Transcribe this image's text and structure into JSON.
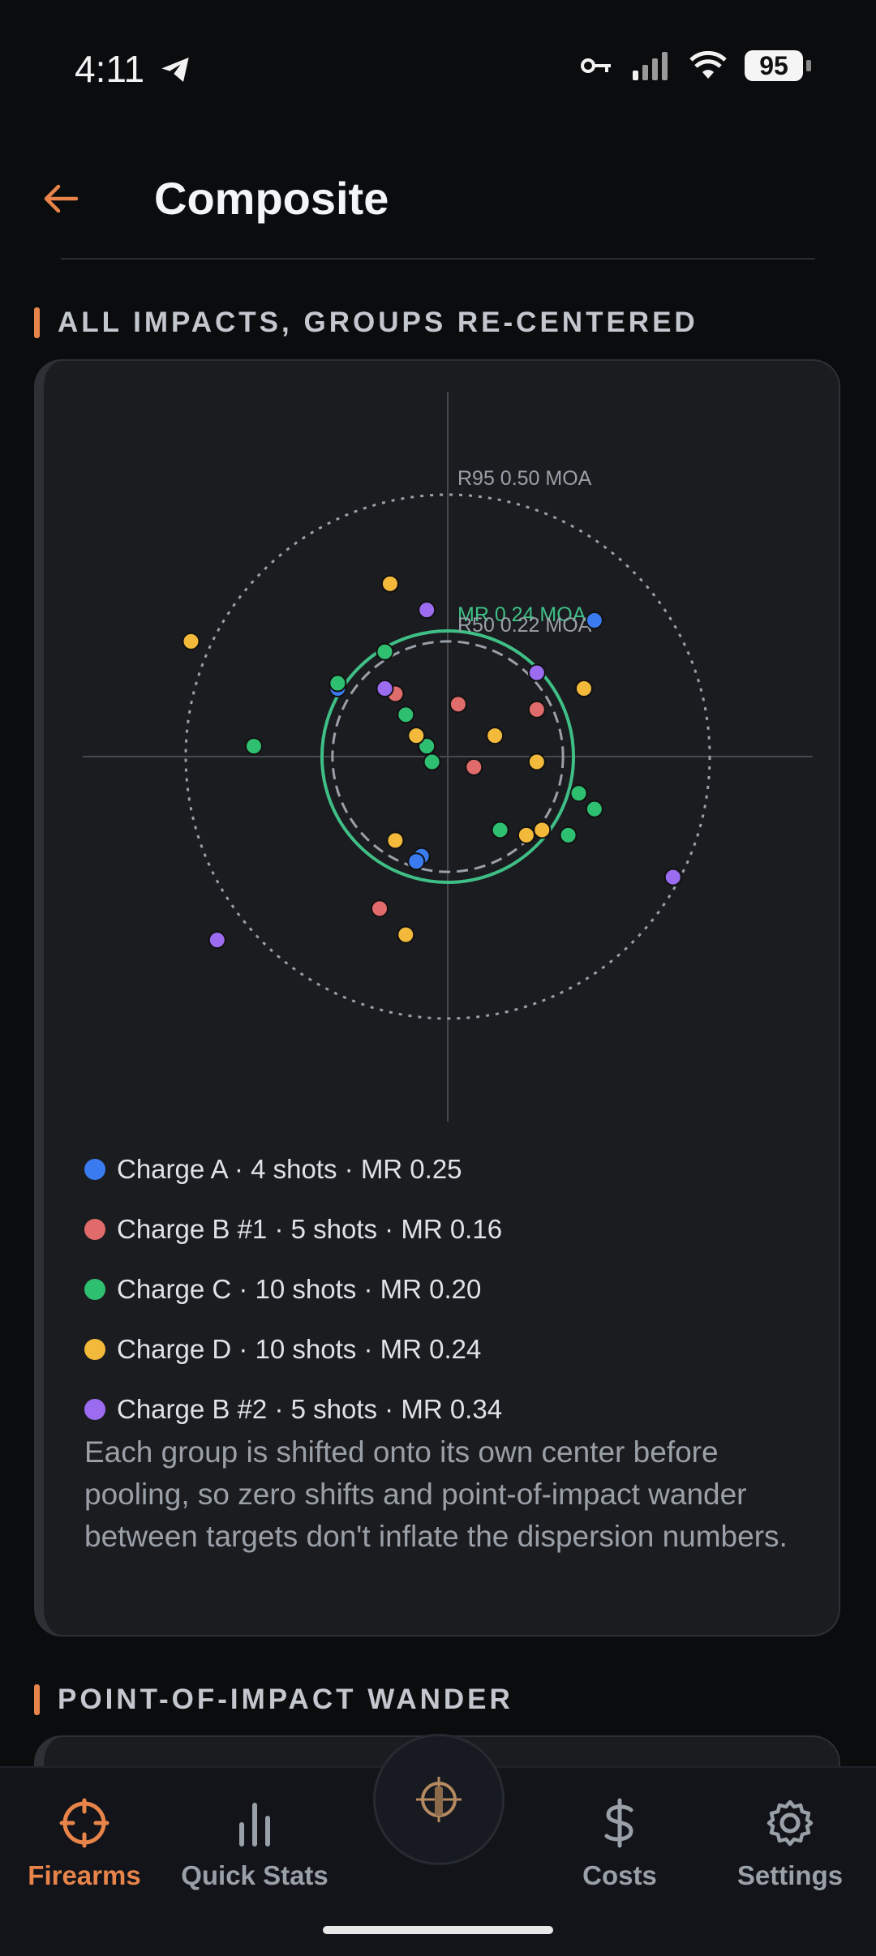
{
  "status": {
    "time": "4:11",
    "battery": "95"
  },
  "header": {
    "title": "Composite"
  },
  "sections": {
    "composite": "ALL IMPACTS, GROUPS RE-CENTERED",
    "wander": "POINT-OF-IMPACT WANDER"
  },
  "chart_data": {
    "type": "scatter",
    "x_range": [
      -1,
      1
    ],
    "y_range": [
      -1,
      1
    ],
    "circles": [
      {
        "label": "R95 0.50 MOA",
        "radius": 0.5,
        "style": "dotted",
        "color": "#9aa0a8"
      },
      {
        "label": "MR 0.24 MOA",
        "radius": 0.24,
        "style": "solid",
        "color": "#3fbf86"
      },
      {
        "label": "R50 0.22 MOA",
        "radius": 0.22,
        "style": "dashed",
        "color": "#9aa0a8"
      }
    ],
    "series": [
      {
        "name": "Charge A · 4 shots · MR 0.25",
        "color": "#3a7bf0",
        "points": [
          [
            0.28,
            0.26
          ],
          [
            -0.21,
            0.13
          ],
          [
            -0.05,
            -0.19
          ],
          [
            -0.06,
            -0.2
          ]
        ]
      },
      {
        "name": "Charge B #1 · 5 shots · MR 0.16",
        "color": "#e06b6b",
        "points": [
          [
            0.02,
            0.1
          ],
          [
            -0.1,
            0.12
          ],
          [
            0.17,
            0.09
          ],
          [
            0.05,
            -0.02
          ],
          [
            -0.13,
            -0.29
          ]
        ]
      },
      {
        "name": "Charge C · 10 shots · MR 0.20",
        "color": "#2fbf71",
        "points": [
          [
            -0.12,
            0.2
          ],
          [
            -0.21,
            0.14
          ],
          [
            -0.08,
            0.08
          ],
          [
            -0.04,
            0.02
          ],
          [
            -0.03,
            -0.01
          ],
          [
            -0.37,
            0.02
          ],
          [
            0.25,
            -0.07
          ],
          [
            0.28,
            -0.1
          ],
          [
            0.23,
            -0.15
          ],
          [
            0.1,
            -0.14
          ]
        ]
      },
      {
        "name": "Charge D · 10 shots · MR 0.24",
        "color": "#f2b93b",
        "points": [
          [
            -0.11,
            0.33
          ],
          [
            -0.49,
            0.22
          ],
          [
            0.26,
            0.13
          ],
          [
            0.09,
            0.04
          ],
          [
            -0.06,
            0.04
          ],
          [
            0.17,
            -0.01
          ],
          [
            -0.1,
            -0.16
          ],
          [
            0.18,
            -0.14
          ],
          [
            0.15,
            -0.15
          ],
          [
            -0.08,
            -0.34
          ]
        ]
      },
      {
        "name": "Charge B #2 · 5 shots · MR 0.34",
        "color": "#9b6cf0",
        "points": [
          [
            -0.04,
            0.28
          ],
          [
            -0.12,
            0.13
          ],
          [
            0.17,
            0.16
          ],
          [
            0.43,
            -0.23
          ],
          [
            -0.44,
            -0.35
          ]
        ]
      }
    ]
  },
  "note": "Each group is shifted onto its own center before pooling, so zero shifts and point-of-impact wander between targets don't inflate the dispersion numbers.",
  "nav": {
    "firearms": "Firearms",
    "quick_stats": "Quick Stats",
    "costs": "Costs",
    "settings": "Settings"
  },
  "colors": {
    "accent": "#e8844a"
  }
}
